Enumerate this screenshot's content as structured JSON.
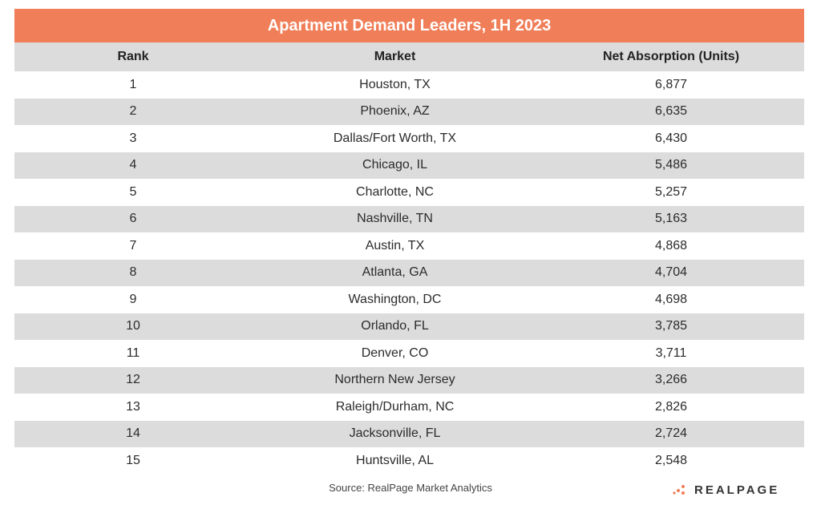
{
  "colors": {
    "title_bg": "#F07E58",
    "header_bg": "#DCDCDC",
    "stripe_bg": "#DCDCDC",
    "row_bg": "#FFFFFF",
    "logo_dot": "#F07E58"
  },
  "chart_data": {
    "type": "table",
    "title": "Apartment Demand Leaders, 1H 2023",
    "columns": [
      "Rank",
      "Market",
      "Net Absorption (Units)"
    ],
    "rows": [
      [
        "1",
        "Houston, TX",
        "6,877"
      ],
      [
        "2",
        "Phoenix, AZ",
        "6,635"
      ],
      [
        "3",
        "Dallas/Fort Worth, TX",
        "6,430"
      ],
      [
        "4",
        "Chicago, IL",
        "5,486"
      ],
      [
        "5",
        "Charlotte, NC",
        "5,257"
      ],
      [
        "6",
        "Nashville, TN",
        "5,163"
      ],
      [
        "7",
        "Austin, TX",
        "4,868"
      ],
      [
        "8",
        "Atlanta, GA",
        "4,704"
      ],
      [
        "9",
        "Washington, DC",
        "4,698"
      ],
      [
        "10",
        "Orlando, FL",
        "3,785"
      ],
      [
        "11",
        "Denver, CO",
        "3,711"
      ],
      [
        "12",
        "Northern New Jersey",
        "3,266"
      ],
      [
        "13",
        "Raleigh/Durham, NC",
        "2,826"
      ],
      [
        "14",
        "Jacksonville, FL",
        "2,724"
      ],
      [
        "15",
        "Huntsville, AL",
        "2,548"
      ]
    ],
    "source": "Source: RealPage Market Analytics"
  },
  "logo": {
    "icon": "realpage-dots-icon",
    "text": "REALPAGE"
  }
}
